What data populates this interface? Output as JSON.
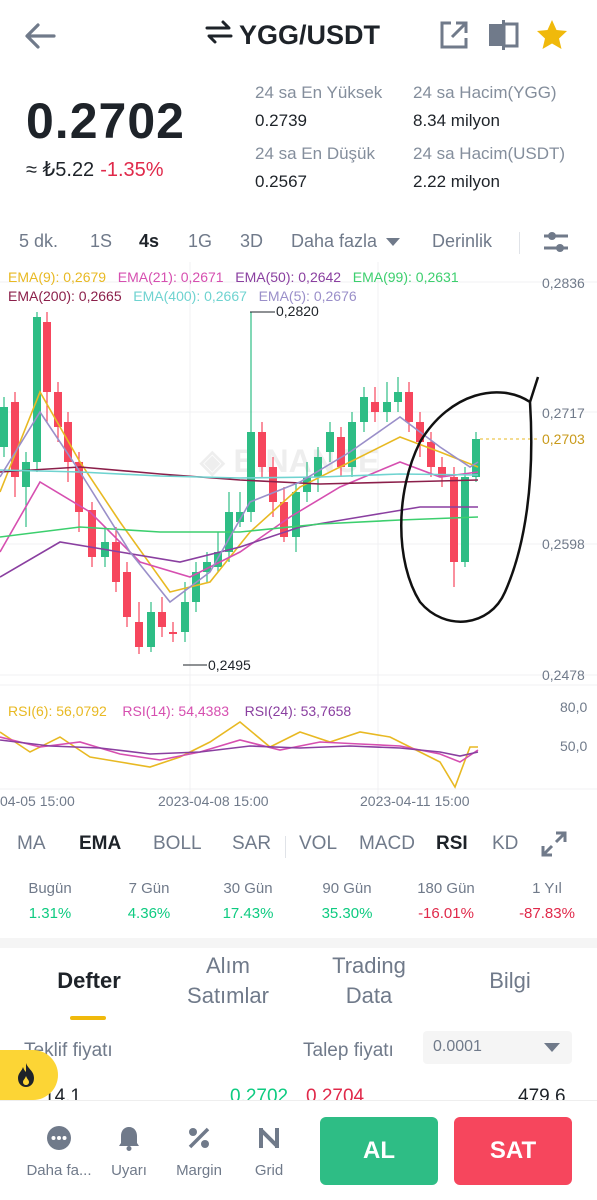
{
  "header": {
    "pair": "YGG/USDT"
  },
  "price": {
    "last": "0.2702",
    "fiat": "≈ ₺5.22",
    "change": "-1.35%"
  },
  "stats": {
    "high_label": "24 sa En Yüksek",
    "high_value": "0.2739",
    "vol_base_label": "24 sa Hacim(YGG)",
    "vol_base_value": "8.34 milyon",
    "low_label": "24 sa En Düşük",
    "low_value": "0.2567",
    "vol_quote_label": "24 sa Hacim(USDT)",
    "vol_quote_value": "2.22 milyon"
  },
  "timeframes": {
    "t5m": "5 dk.",
    "t1h": "1S",
    "t4h": "4s",
    "t1d": "1G",
    "t3d": "3D",
    "more": "Daha fazla",
    "depth": "Derinlik"
  },
  "ema": {
    "ema9": "EMA(9): 0,2679",
    "ema21": "EMA(21): 0,2671",
    "ema50": "EMA(50): 0,2642",
    "ema99": "EMA(99): 0,2631",
    "ema200": "EMA(200): 0,2665",
    "ema400": "EMA(400): 0,2667",
    "ema5": "EMA(5): 0,2676"
  },
  "rsi": {
    "rsi6": "RSI(6): 56,0792",
    "rsi14": "RSI(14): 54,4383",
    "rsi24": "RSI(24): 53,7658"
  },
  "chart_data": {
    "type": "candlestick",
    "y_ticks": [
      "0,2836",
      "0,2717",
      "0,2598",
      "0,2478"
    ],
    "current_price_label": "0,2703",
    "high_marker": "0,2820",
    "low_marker": "0,2495",
    "rsi_ticks": [
      "80,0",
      "50,0"
    ],
    "x_labels": [
      "04-05 15:00",
      "2023-04-08 15:00",
      "2023-04-11 15:00"
    ],
    "colors": {
      "up": "#2ebd85",
      "down": "#f6465d",
      "ema9": "#e8b923",
      "ema21": "#d64fb0",
      "ema50": "#8a3fa0",
      "ema99": "#3ccf6e",
      "ema200": "#8b1f4a",
      "ema400": "#6fd3d0",
      "ema5": "#9a8fc9"
    }
  },
  "indicators": {
    "ma": "MA",
    "ema": "EMA",
    "boll": "BOLL",
    "sar": "SAR",
    "vol": "VOL",
    "macd": "MACD",
    "rsi": "RSI",
    "kd": "KD"
  },
  "performance": [
    {
      "label": "Bugün",
      "value": "1.31%"
    },
    {
      "label": "7 Gün",
      "value": "4.36%"
    },
    {
      "label": "30 Gün",
      "value": "17.43%"
    },
    {
      "label": "90 Gün",
      "value": "35.30%"
    },
    {
      "label": "180 Gün",
      "value": "-16.01%"
    },
    {
      "label": "1 Yıl",
      "value": "-87.83%"
    }
  ],
  "orderbook_tabs": {
    "book": "Defter",
    "trades_1": "Alım",
    "trades_2": "Satımlar",
    "trading_1": "Trading",
    "trading_2": "Data",
    "info": "Bilgi"
  },
  "orderbook": {
    "bid_label": "Teklif fiyatı",
    "ask_label": "Talep fiyatı",
    "precision": "0.0001",
    "row_bid_qty": "14.1",
    "row_bid_price": "0.2702",
    "row_ask_price": "0.2704",
    "row_ask_qty": "479.6"
  },
  "bottom_nav": {
    "more": "Daha fa...",
    "alert": "Uyarı",
    "margin": "Margin",
    "grid": "Grid",
    "buy": "AL",
    "sell": "SAT"
  }
}
